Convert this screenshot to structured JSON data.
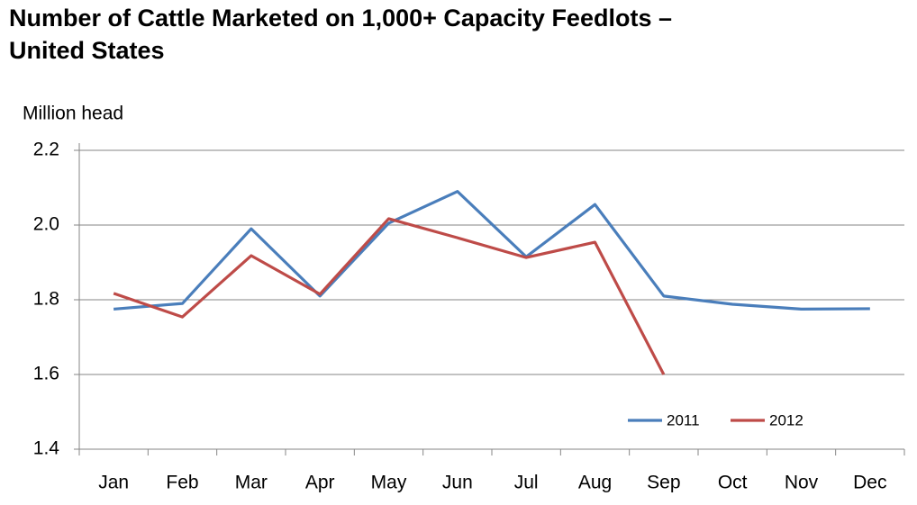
{
  "chart_data": {
    "type": "line",
    "title": "Number of Cattle Marketed on 1,000+ Capacity Feedlots – United States",
    "y_label": "Million head",
    "categories": [
      "Jan",
      "Feb",
      "Mar",
      "Apr",
      "May",
      "Jun",
      "Jul",
      "Aug",
      "Sep",
      "Oct",
      "Nov",
      "Dec"
    ],
    "series": [
      {
        "name": "2011",
        "color": "#4a7ebb",
        "values": [
          1.775,
          1.79,
          1.99,
          1.81,
          2.005,
          2.09,
          1.915,
          2.055,
          1.81,
          1.788,
          1.775,
          1.776
        ]
      },
      {
        "name": "2012",
        "color": "#be4b48",
        "values": [
          1.817,
          1.754,
          1.918,
          1.815,
          2.017,
          1.966,
          1.913,
          1.954,
          1.6,
          null,
          null,
          null
        ]
      }
    ],
    "ylim": [
      1.4,
      2.2
    ],
    "yticks": [
      1.4,
      1.6,
      1.8,
      {
        "value": 2,
        "label": "2.0"
      },
      2.2
    ],
    "grid": true,
    "legend": "lower right"
  }
}
